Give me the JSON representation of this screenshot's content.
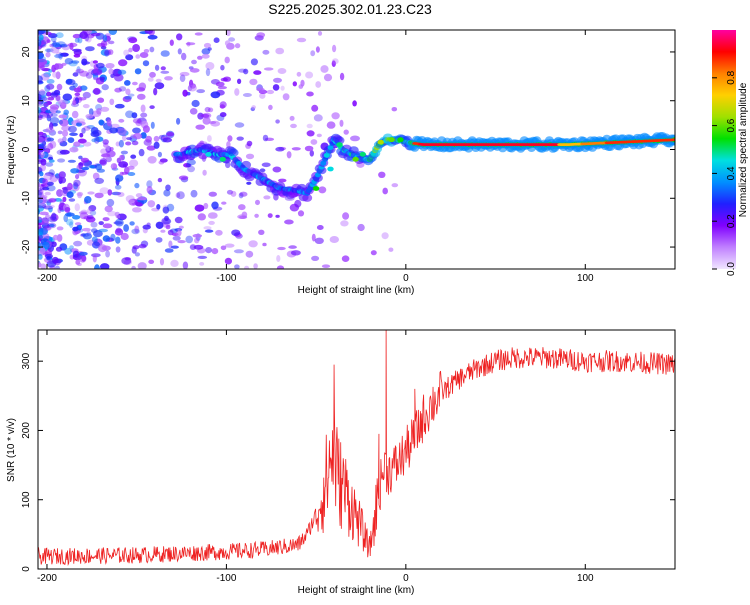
{
  "figure_title": "S225.2025.302.01.23.C23",
  "chart_data": [
    {
      "type": "heatmap",
      "title": "S225.2025.302.01.23.C23",
      "xlabel": "Height of straight line (km)",
      "ylabel": "Frequency (Hz)",
      "xlim": [
        -205,
        150
      ],
      "ylim": [
        -24.5,
        24.5
      ],
      "xticks": [
        -200,
        -100,
        0,
        100
      ],
      "yticks": [
        -20,
        -10,
        0,
        10,
        20
      ],
      "colorbar": {
        "label": "Normalized spectral amplitude",
        "range": [
          0,
          1
        ],
        "ticks": [
          0.0,
          0.2,
          0.4,
          0.6,
          0.8
        ],
        "tick_labels": [
          "0.0",
          "0.2",
          "0.4",
          "0.6",
          "0.8"
        ],
        "stops": [
          "#f0e6ff",
          "#c080ff",
          "#8000ff",
          "#2020ff",
          "#0090ff",
          "#00e0e0",
          "#00e000",
          "#a0e000",
          "#ffd000",
          "#ff8000",
          "#ff0000",
          "#ff00a0"
        ]
      },
      "ridge": {
        "description_values": "dominant frequency track (km, Hz)",
        "x": [
          -125,
          -115,
          -105,
          -98,
          -90,
          -80,
          -70,
          -60,
          -55,
          -50,
          -45,
          -40,
          -35,
          -30,
          -25,
          -20,
          -15,
          -10,
          -5,
          0,
          10,
          30,
          60,
          90,
          120,
          150
        ],
        "y": [
          -1,
          0,
          -1,
          -1,
          -4,
          -6,
          -8,
          -8.5,
          -9,
          -6,
          -2,
          2,
          0,
          -1,
          -2,
          -2,
          1,
          2,
          2,
          1.5,
          1,
          1,
          1,
          1,
          1.5,
          2
        ]
      }
    },
    {
      "type": "line",
      "xlabel": "Height of straight line (km)",
      "ylabel": "SNR (10 * v/v)",
      "xlim": [
        -205,
        150
      ],
      "ylim": [
        0,
        345
      ],
      "xticks": [
        -200,
        -100,
        0,
        100
      ],
      "yticks": [
        0,
        100,
        200,
        300
      ],
      "series": [
        {
          "name": "SNR",
          "color": "#ee2222",
          "trend_x": [
            -205,
            -150,
            -100,
            -80,
            -60,
            -55,
            -50,
            -45,
            -40,
            -38,
            -35,
            -30,
            -25,
            -22,
            -20,
            -15,
            -12,
            -10,
            -5,
            0,
            5,
            10,
            15,
            20,
            25,
            30,
            40,
            50,
            60,
            80,
            100,
            120,
            150
          ],
          "trend_y": [
            18,
            20,
            25,
            28,
            35,
            50,
            80,
            120,
            180,
            130,
            120,
            90,
            60,
            40,
            30,
            110,
            150,
            140,
            150,
            170,
            190,
            220,
            240,
            255,
            265,
            275,
            290,
            300,
            305,
            305,
            300,
            300,
            295
          ],
          "noise_amplitude": 12,
          "spikes": [
            {
              "x": -40,
              "y": 295
            },
            {
              "x": -11,
              "y": 345
            },
            {
              "x": -15,
              "y": 195
            },
            {
              "x": 5,
              "y": 260
            }
          ]
        }
      ]
    }
  ]
}
